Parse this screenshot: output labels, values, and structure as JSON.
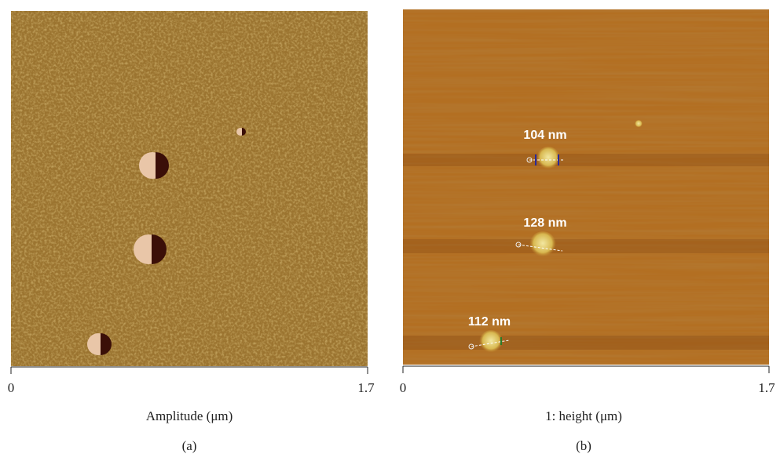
{
  "panels": [
    {
      "axis": {
        "ticks": [
          0,
          1.7
        ],
        "label": "Amplitude (μm)"
      },
      "caption": "(a)"
    },
    {
      "axis": {
        "ticks": [
          0,
          1.7
        ],
        "label": "1: height (μm)"
      },
      "caption": "(b)",
      "annotations": [
        "104 nm",
        "128 nm",
        "112 nm"
      ]
    }
  ]
}
